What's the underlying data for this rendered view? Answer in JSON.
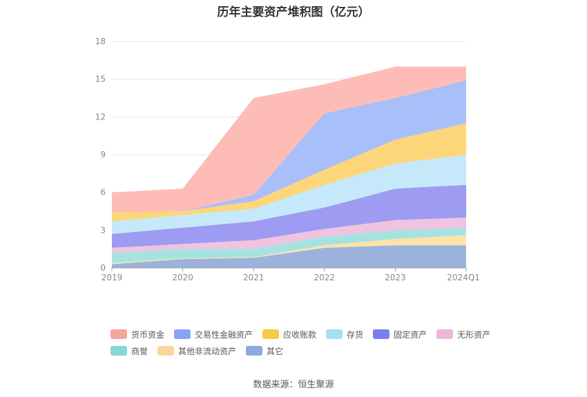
{
  "chart_data": {
    "type": "area",
    "stacked": true,
    "title": "历年主要资产堆积图（亿元）",
    "categories": [
      "2019",
      "2020",
      "2021",
      "2022",
      "2023",
      "2024Q1"
    ],
    "ylim": [
      0,
      18
    ],
    "yticks": [
      0,
      3,
      6,
      9,
      12,
      15,
      18
    ],
    "grid": true,
    "legend_position": "bottom",
    "series": [
      {
        "name": "其它",
        "color": "#9bb3dc",
        "values": [
          0.3,
          0.7,
          0.8,
          1.6,
          1.8,
          1.8
        ]
      },
      {
        "name": "其他非流动资产",
        "color": "#fde3a7",
        "values": [
          0.1,
          0.05,
          0.05,
          0.2,
          0.5,
          0.8
        ]
      },
      {
        "name": "商誉",
        "color": "#a6e3e0",
        "values": [
          0.8,
          0.75,
          0.65,
          0.7,
          0.7,
          0.6
        ]
      },
      {
        "name": "无形资产",
        "color": "#f0c3e0",
        "values": [
          0.4,
          0.4,
          0.7,
          0.6,
          0.8,
          0.8
        ]
      },
      {
        "name": "固定资产",
        "color": "#9d9cf2",
        "values": [
          1.1,
          1.3,
          1.5,
          1.7,
          2.5,
          2.6
        ]
      },
      {
        "name": "存货",
        "color": "#c5e8fb",
        "values": [
          1.0,
          1.0,
          1.0,
          1.8,
          2.0,
          2.4
        ]
      },
      {
        "name": "应收账款",
        "color": "#fdd67a",
        "values": [
          0.7,
          0.3,
          0.6,
          1.2,
          1.9,
          2.5
        ]
      },
      {
        "name": "交易性金融资产",
        "color": "#a8bff9",
        "values": [
          0.0,
          0.0,
          0.5,
          4.5,
          3.3,
          3.4
        ]
      },
      {
        "name": "货币资金",
        "color": "#fdbdb6",
        "values": [
          1.6,
          1.8,
          7.7,
          2.3,
          2.5,
          1.1
        ]
      }
    ]
  },
  "legend": {
    "row1": [
      {
        "label": "货币资金",
        "color": "#f8a59b"
      },
      {
        "label": "交易性金融资产",
        "color": "#8aa4f5"
      },
      {
        "label": "应收账款",
        "color": "#fcc84a"
      },
      {
        "label": "存货",
        "color": "#a9dcf8"
      },
      {
        "label": "固定资产",
        "color": "#7b7ef0"
      },
      {
        "label": "无形资产",
        "color": "#ebb8dc"
      }
    ],
    "row2": [
      {
        "label": "商誉",
        "color": "#86d8d6"
      },
      {
        "label": "其他非流动资产",
        "color": "#fcd598"
      },
      {
        "label": "其它",
        "color": "#8ea9da"
      }
    ]
  },
  "source": "数据来源：恒生聚源"
}
